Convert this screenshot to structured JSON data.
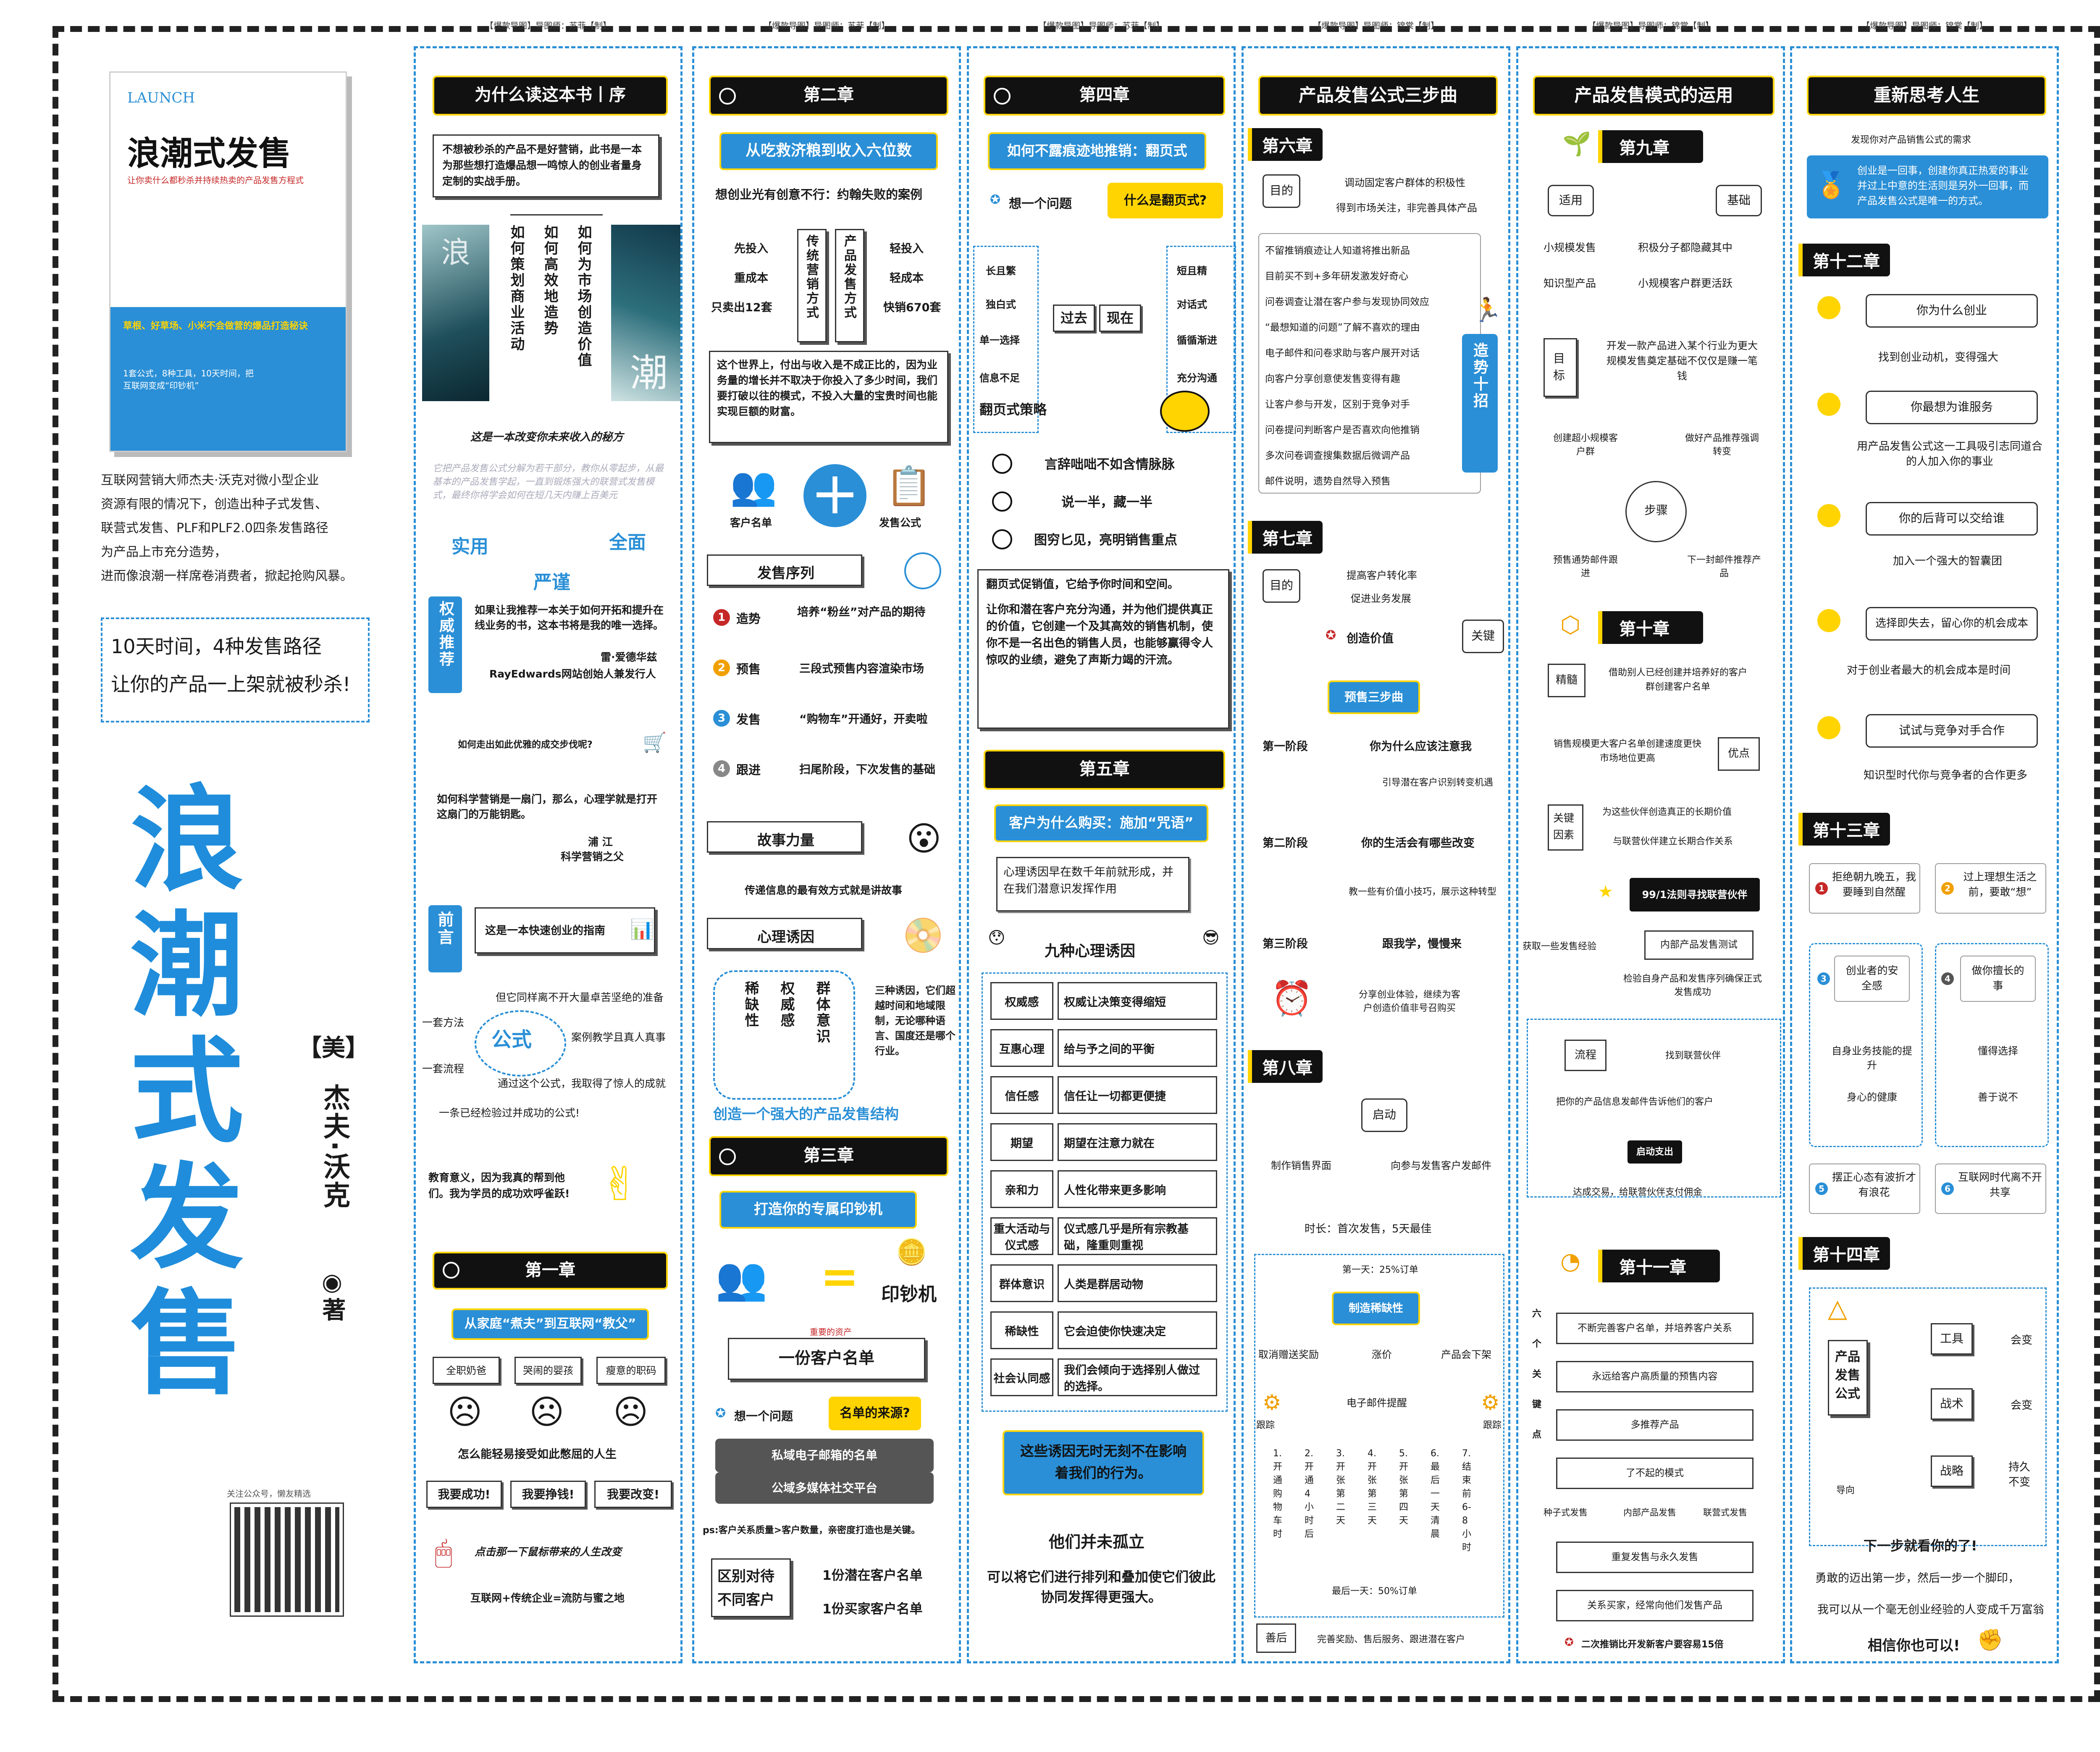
{
  "left": {
    "book": {
      "brand": "LAUNCH",
      "title": "浪潮式发售",
      "subtitle": "让你卖什么都秒杀并持续热卖的产品发售方程式",
      "band": "草根、好草场、小米不会做营的爆品打造秘诀",
      "footer": "1套公式，8种工具，10天时间，把互联网变成“印钞机”"
    },
    "intro": [
      "互联网营销大师杰夫·沃克对微小型企业",
      "资源有限的情况下，创造出种子式发售、",
      "联营式发售、PLF和PLF2.0四条发售路径",
      "为产品上市充分造势，",
      "进而像浪潮一样席卷消费者，掀起抢购风暴。"
    ],
    "slogan": [
      "10天时间，4种发售路径",
      "让你的产品一上架就被秒杀!"
    ],
    "big_title": [
      "浪",
      "潮",
      "式",
      "发",
      "售"
    ],
    "author": {
      "country": "【美】",
      "name": "杰夫·沃克",
      "suffix": "◉著"
    },
    "qr_caption": "关注公众号，懒友精选"
  },
  "credits": {
    "c1": "【爆款导图】导图师：苏菲【制】",
    "c2": "【爆款导图】导图师：苏菲【制】",
    "c3": "【爆款导图】导图师：苏菲【制】",
    "c4": "【爆款导图】导图师：锦棠【制】",
    "c5": "【爆款导图】导图师：锦棠【制】",
    "c6": "【爆款导图】导图师：锦棠【制】"
  },
  "col1": {
    "header": "为什么读这本书丨序",
    "quote": "不想被秒杀的产品不是好营销，此书是一本为那些想打造爆品想一鸣惊人的创业者量身定制的实战手册。",
    "branches": [
      "如何策划商业活动",
      "如何高效地造势",
      "如何为市场创造价值"
    ],
    "img_chars": [
      "浪",
      "潮"
    ],
    "caption": "这是一本改变你未来收入的秘方",
    "faded": "它把产品发售公式分解为若干部分，教你从零起步，从最基本的产品发售学起，一直到锻炼强大的联营式发售模式，最终你将学会如何在短几天内赚上百美元",
    "w1": "实用",
    "w2": "严谨",
    "w3": "全面",
    "auth_tab": "权威推荐",
    "rec": "如果让我推荐一本关于如何开拓和提升在线业务的书，这本书将是我的唯一选择。",
    "rec_by": "雷·爱德华兹",
    "rec_org": "RayEdwards网站创始人兼发行人",
    "q2": "如何走出如此优雅的成交步伐呢?",
    "q3": "如何科学营销是一扇门，那么，心理学就是打开这扇门的万能钥匙。",
    "q3_by": "浦   江",
    "q3_org": "科学营销之父",
    "pre_tab": "前言",
    "guide": "这是一本快速创业的指南",
    "m1": "但它同样离不开大量卓苦坚绝的准备",
    "m2": "一套方法",
    "m3": "案例教学且真人真事",
    "m4": "一套流程",
    "formula": "公式",
    "m5": "通过这个公式，我取得了惊人的成就",
    "m6": "一条已经检验过并成功的公式!",
    "edu": "教育意义，因为我真的帮到他们。我为学员的成功欢呼雀跃!",
    "ch1": "第一章",
    "ch1_sub": "从家庭“煮夫”到互联网“教父”",
    "ch1_items": [
      "全职奶爸",
      "哭闹的婴孩",
      "瘦意的职码"
    ],
    "ch1_q": "怎么能轻易接受如此憋屈的人生",
    "ch1_wants": [
      "我要成功!",
      "我要挣钱!",
      "我要改变!"
    ],
    "ch1_click": "点击那一下鼠标带来的人生改变",
    "ch1_eq": "互联网+传统企业=流防与蜜之地"
  },
  "col2": {
    "ch2": "第二章",
    "sub": "从吃救济粮到收入六位数",
    "case": "想创业光有创意不行：约翰失败的案例",
    "left": [
      "先投入",
      "重成本",
      "只卖出12套"
    ],
    "mid1": "传统营销方式",
    "mid2": "产品发售方式",
    "right": [
      "轻投入",
      "轻成本",
      "快销670套"
    ],
    "para": "这个世界上，付出与收入是不成正比的，因为业务量的增长并不取决于你投入了多少时间，我们要打破以往的模式，不投入大量的宝贵时间也能实现巨额的财富。",
    "icons": [
      "客户名单",
      "发售公式"
    ],
    "seq": "发售序列",
    "steps": [
      [
        "造势",
        "培养“粉丝”对产品的期待"
      ],
      [
        "预售",
        "三段式预售内容渲染市场"
      ],
      [
        "发售",
        "“购物车”开通好，开卖啦"
      ],
      [
        "跟进",
        "扫尾阶段，下次发售的基础"
      ]
    ],
    "story": "故事力量",
    "story_sub": "传递信息的最有效方式就是讲故事",
    "psy": "心理诱因",
    "psy3": [
      "稀缺性",
      "权威感",
      "群体意识"
    ],
    "psy_note": "三种诱因，它们超越时间和地域限制，无论哪种语言、国度还是哪个行业。",
    "structure": "创造一个强大的产品发售结构",
    "ch3": "第三章",
    "ch3_sub": "打造你的专属印钞机",
    "printer": "印钞机",
    "asset": "重要的资产",
    "list": "一份客户名单",
    "q": "想一个问题",
    "qsrc": "名单的来源?",
    "src": [
      "私域电子邮箱的名单",
      "公域多媒体社交平台"
    ],
    "ps": "ps:客户关系质量>客户数量，亲密度打造也是关键。",
    "diff": "区别对待不同客户",
    "diff_items": [
      "1份潜在客户名单",
      "1份买家客户名单"
    ]
  },
  "col3": {
    "ch4": "第四章",
    "sub": "如何不露痕迹地推销：翻页式",
    "q": "想一个问题",
    "qa": "什么是翻页式?",
    "left": [
      "长且繁",
      "独白式",
      "单一选择",
      "信息不足"
    ],
    "past": "过去",
    "now": "现在",
    "right": [
      "短且精",
      "对话式",
      "循循渐进",
      "充分沟通"
    ],
    "strategy": "翻页式策略",
    "s": [
      "言辞咄咄不如含情脉脉",
      "说一半，藏一半",
      "图穷匕见，亮明销售重点"
    ],
    "promo": "翻页式促销值，它给予你时间和空间。",
    "promo2": "让你和潜在客户充分沟通，并为他们提供真正的价值，它创建一个及其高效的销售机制，使你不是一名出色的销售人员，也能够赢得令人惊叹的业绩，避免了声斯力竭的汗流。",
    "ch5": "第五章",
    "ch5_sub": "客户为什么购买：施加“咒语”",
    "ch5_note": "心理诱因早在数千年前就形成，并在我们潜意识发挥作用",
    "nine": "九种心理诱因",
    "rows": [
      [
        "权威感",
        "权威让决策变得缩短"
      ],
      [
        "互惠心理",
        "给与予之间的平衡"
      ],
      [
        "信任感",
        "信任让一切都更便捷"
      ],
      [
        "期望",
        "期望在注意力就在"
      ],
      [
        "亲和力",
        "人性化带来更多影响"
      ],
      [
        "重大活动与仪式感",
        "仪式感几乎是所有宗教基础，隆重则重视"
      ],
      [
        "群体意识",
        "人类是群居动物"
      ],
      [
        "稀缺性",
        "它会迫使你快速决定"
      ],
      [
        "社会认同感",
        "我们会倾向于选择别人做过的选择。"
      ]
    ],
    "note": "这些诱因无时无刻不在影响着我们的行为。",
    "alone": "他们并未孤立",
    "alone2": "可以将它们进行排列和叠加使它们彼此协同发挥得更强大。"
  },
  "col4": {
    "header": "产品发售公式三步曲",
    "ch6": "第六章",
    "goal": "目的",
    "g1": "调动固定客户群体的积极性",
    "g2": "得到市场关注，非完善具体产品",
    "list": [
      "不留推销痕迹让人知道将推出新品",
      "目前买不到+多年研发激发好奇心",
      "问卷调查让潜在客户参与发现协同效应",
      "“最想知道的问题”了解不喜欢的理由",
      "电子邮件和问卷求助与客户展开对话",
      "向客户分享创意使发售变得有趣",
      "让客户参与开发，区别于竞争对手",
      "问卷提问判断客户是否喜欢向他推销",
      "多次问卷调查搜集数据后微调产品",
      "邮件说明，遗势自然导入预售"
    ],
    "side": "造势十招",
    "ch7": "第七章",
    "g7a": "提高客户转化率",
    "g7b": "促进业务发展",
    "value": "创造价值",
    "key": "关键",
    "pre": "预售三步曲",
    "stages": [
      [
        "第一阶段",
        "你为什么应该注意我",
        "引导潜在客户识别转变机遇"
      ],
      [
        "第二阶段",
        "你的生活会有哪些改变",
        "教一些有价值小技巧，展示这种转型"
      ],
      [
        "第三阶段",
        "跟我学，慢慢来",
        "分享创业体验，继续为客户创造价值非号召购买"
      ]
    ],
    "ch8": "第八章",
    "start": "启动",
    "start_items": [
      "制作销售界面",
      "向参与发售客户发邮件"
    ],
    "time": "时长：首次发售，5天最佳",
    "day1": "第一天：25%订单",
    "scar": "制造稀缺性",
    "scar_items": [
      "取消赠送奖励",
      "涨价",
      "产品会下架"
    ],
    "email": "电子邮件提醒",
    "follow": "跟踪",
    "days": [
      "1.开通购物车时",
      "2.开通4小时后",
      "3.开张第二天",
      "4.开张第三天",
      "5.开张第四天",
      "6.最后一天清晨",
      "7.结束前6-8小时"
    ],
    "last": "最后一天：50%订单",
    "after": "善后",
    "after_t": "完善奖励、售后服务、跟进潜在客户"
  },
  "col5": {
    "header": "产品发售模式的运用",
    "ch9": "第九章",
    "fit": "适用",
    "base": "基础",
    "fit_items": [
      "小规模发售",
      "知识型产品"
    ],
    "base_items": [
      "积极分子都隐藏其中",
      "小规模客户群更活跃"
    ],
    "goal": "目标",
    "goal_t": "开发一款产品进入某个行业为更大规模发售奠定基础不仅仅是赚一笔钱",
    "cycle": [
      "创建超小规模客户群",
      "做好产品推荐强调转变",
      "下一封邮件推荐产品",
      "预售通势邮件跟进"
    ],
    "steps": "步骤",
    "ch10": "第十章",
    "expert": "精髓",
    "expert_t": "借助别人已经创建并培养好的客户群创建客户名单",
    "adv": "优点",
    "adv_t": "销售规模更大客户名单创建速度更快市场地位更高",
    "factor": "关键因素",
    "factor_t1": "为这些伙伴创造真正的长期价值",
    "factor_t2": "与联营伙伴建立长期合作关系",
    "rule": "99/1法则寻找联营伙伴",
    "get": "获取一些发售经验",
    "inner": "内部产品发售测试",
    "inner_t": "检验自身产品和发售序列确保正式发售成功",
    "flow": "流程",
    "find": "找到联营伙伴",
    "flow_t": "把你的产品信息发邮件告诉他们的客户",
    "start": "启动支出",
    "close": "达成交易，给联营伙伴支付佣金",
    "ch11": "第十一章",
    "six": "六个关键点",
    "points": [
      "不断完善客户名单，并培养客户关系",
      "永远给客户高质量的预售内容",
      "多推荐产品",
      "了不起的模式",
      "重复发售与永久发售",
      "关系买家，经常向他们发售产品"
    ],
    "tiny": [
      "种子式发售",
      "内部产品发售",
      "联营式发售"
    ],
    "note": "二次推销比开发新客户要容易15倍"
  },
  "col6": {
    "header": "重新思考人生",
    "sub": "发现你对产品销售公式的需求",
    "card": "创业是一回事，创建你真正热爱的事业并过上中意的生活则是另外一回事，而产品发售公式是唯一的方式。",
    "ch12": "第十二章",
    "qa": [
      [
        "你为什么创业",
        "找到创业动机，变得强大"
      ],
      [
        "你最想为谁服务",
        "用产品发售公式这一工具吸引志同道合的人加入你的事业"
      ],
      [
        "你的后背可以交给谁",
        "加入一个强大的智囊团"
      ],
      [
        "选择即失去，留心你的机会成本",
        "对于创业者最大的机会成本是时间"
      ],
      [
        "试试与竞争对手合作",
        "知识型时代你与竞争者的合作更多"
      ]
    ],
    "ch13": "第十三章",
    "r": [
      "拒绝朝九晚五，我要睡到自然醒",
      "过上理想生活之前，要敢“想”",
      "创业者的安全感",
      "做你擅长的事",
      "摆正心态有波折才有浪花",
      "互联网时代离不开共享"
    ],
    "r3": [
      "自身业务技能的提升",
      "身心的健康"
    ],
    "r4": [
      "懂得选择",
      "善于说不"
    ],
    "ch14": "第十四章",
    "formula": "产品发售公式",
    "f": [
      [
        "工具",
        "会变"
      ],
      [
        "战术",
        "会变"
      ],
      [
        "战略",
        "持久不变"
      ]
    ],
    "guide": "导向",
    "end1": "下一步就看你的了!",
    "end2": "勇敢的迈出第一步，然后一步一个脚印，",
    "end3": "我可以从一个毫无创业经验的人变成千万富翁",
    "end4": "相信你也可以!"
  }
}
